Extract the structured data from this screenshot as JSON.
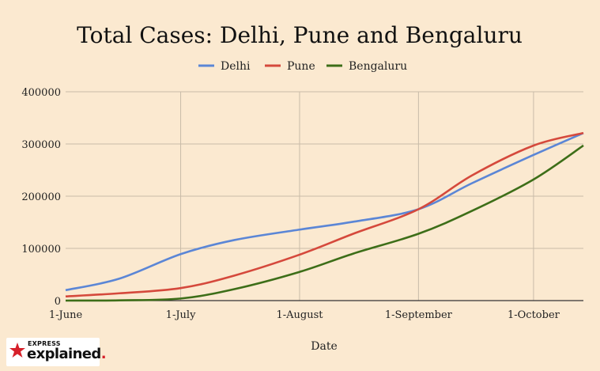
{
  "chart_data": {
    "type": "line",
    "title": "Total Cases: Delhi, Pune and Bengaluru",
    "xlabel": "Date",
    "ylabel": "",
    "x_tick_labels": [
      "1-June",
      "1-July",
      "1-August",
      "1-September",
      "1-October"
    ],
    "y_tick_labels": [
      "0",
      "100000",
      "200000",
      "300000",
      "400000"
    ],
    "ylim": [
      0,
      400000
    ],
    "x_range": [
      "2020-06-01",
      "2020-10-14"
    ],
    "grid": true,
    "legend_position": "top-center",
    "x": [
      "2020-06-01",
      "2020-06-15",
      "2020-07-01",
      "2020-07-15",
      "2020-08-01",
      "2020-08-15",
      "2020-09-01",
      "2020-09-15",
      "2020-10-01",
      "2020-10-14"
    ],
    "series": [
      {
        "name": "Delhi",
        "color": "#5b86d6",
        "values": [
          20000,
          42000,
          89000,
          116000,
          136000,
          151000,
          175000,
          225000,
          279000,
          321000
        ]
      },
      {
        "name": "Pune",
        "color": "#d5493c",
        "values": [
          8000,
          14000,
          24000,
          48000,
          88000,
          128000,
          175000,
          240000,
          297000,
          321000
        ]
      },
      {
        "name": "Bengaluru",
        "color": "#3d6e18",
        "values": [
          0,
          500,
          4000,
          22000,
          55000,
          90000,
          128000,
          172000,
          232000,
          297000
        ]
      }
    ]
  },
  "branding": {
    "logo_top": "EXPRESS",
    "logo_bottom": "explained",
    "logo_dot": "."
  }
}
